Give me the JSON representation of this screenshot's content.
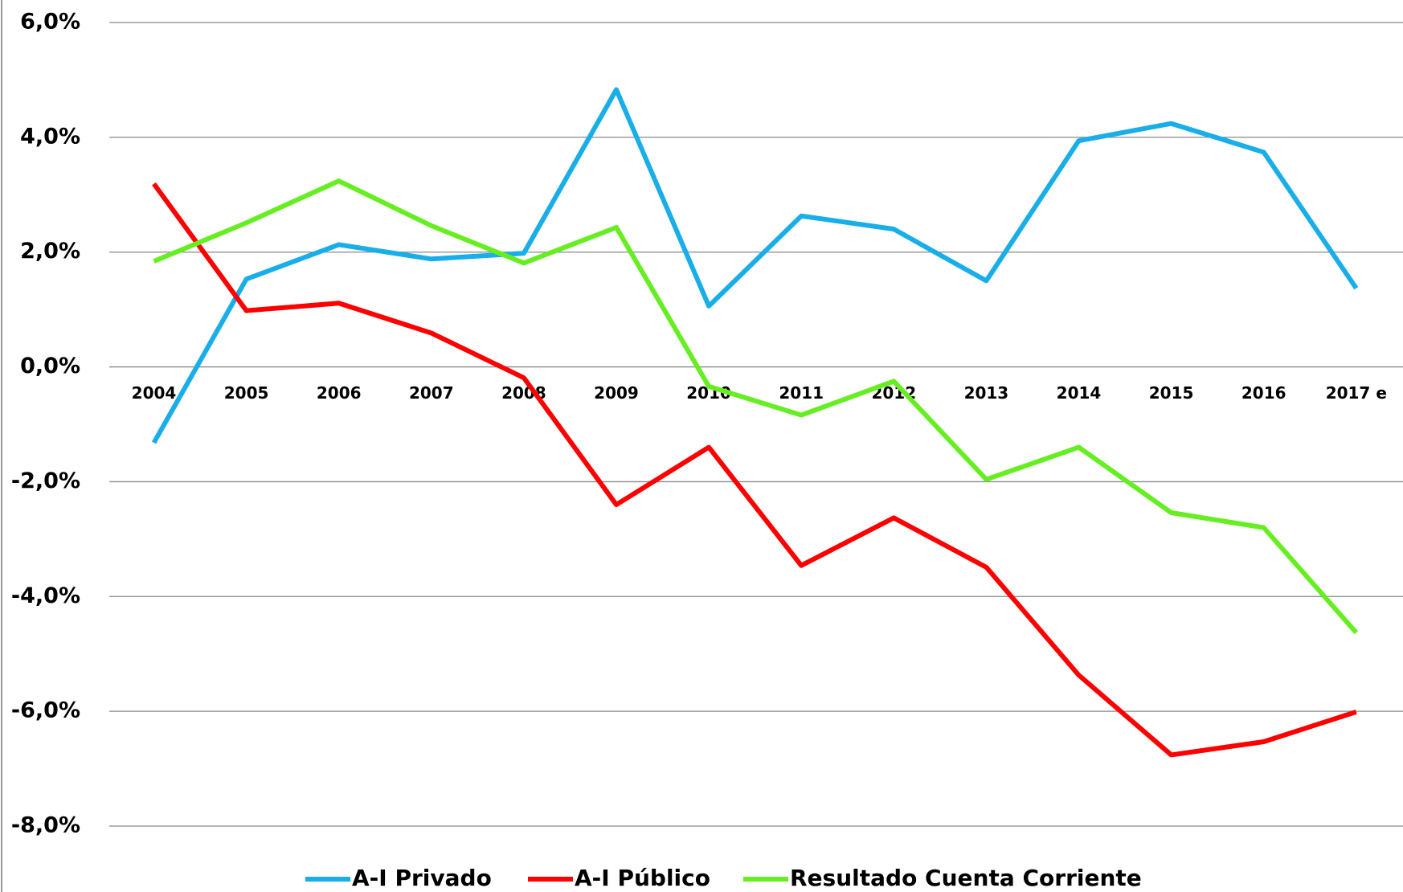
{
  "chart_data": {
    "type": "line",
    "categories": [
      "2004",
      "2005",
      "2006",
      "2007",
      "2008",
      "2009",
      "2010",
      "2011",
      "2012",
      "2013",
      "2014",
      "2015",
      "2016",
      "2017 e"
    ],
    "series": [
      {
        "name": "A-I Privado",
        "color": "#1aaee8",
        "values": [
          -1.32,
          1.53,
          2.13,
          1.88,
          1.98,
          4.83,
          1.06,
          2.63,
          2.4,
          1.5,
          3.94,
          4.24,
          3.74,
          1.37
        ]
      },
      {
        "name": "A-I Público",
        "color": "#ff0000",
        "values": [
          3.19,
          0.98,
          1.11,
          0.59,
          -0.19,
          -2.4,
          -1.4,
          -3.46,
          -2.63,
          -3.49,
          -5.37,
          -6.76,
          -6.53,
          -6.01
        ]
      },
      {
        "name": "Resultado Cuenta Corriente",
        "color": "#66ee22",
        "values": [
          1.84,
          2.51,
          3.24,
          2.46,
          1.81,
          2.43,
          -0.34,
          -0.84,
          -0.25,
          -1.96,
          -1.4,
          -2.54,
          -2.8,
          -4.63
        ]
      }
    ],
    "ylim": [
      -8,
      6
    ],
    "yticks": [
      {
        "value": 6,
        "label": "6,0%"
      },
      {
        "value": 4,
        "label": "4,0%"
      },
      {
        "value": 2,
        "label": "2,0%"
      },
      {
        "value": 0,
        "label": "0,0%"
      },
      {
        "value": -2,
        "label": "-2,0%"
      },
      {
        "value": -4,
        "label": "-4,0%"
      },
      {
        "value": -6,
        "label": "-6,0%"
      },
      {
        "value": -8,
        "label": "-8,0%"
      }
    ],
    "grid": true,
    "legend": "bottom"
  }
}
